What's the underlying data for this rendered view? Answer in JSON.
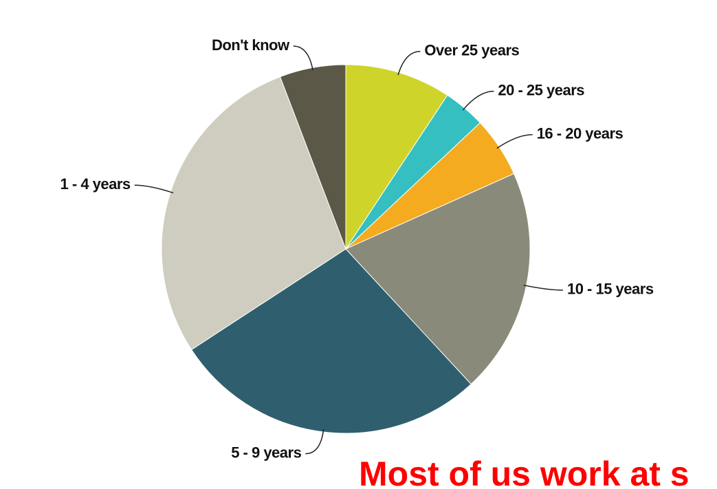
{
  "chart_data": {
    "type": "pie",
    "categories": [
      "Over 25 years",
      "20 - 25 years",
      "16 - 20 years",
      "10 - 15 years",
      "5 - 9 years",
      "1 - 4 years",
      "Don't know"
    ],
    "values": [
      9.3,
      3.7,
      5.3,
      19.8,
      27.7,
      28.4,
      5.8
    ],
    "colors": [
      "#cfd42a",
      "#35bfc0",
      "#f5ab1f",
      "#8a8a7a",
      "#2f5f6e",
      "#cfcdbf",
      "#5b5848"
    ],
    "annotation": "Most of us work at s"
  }
}
